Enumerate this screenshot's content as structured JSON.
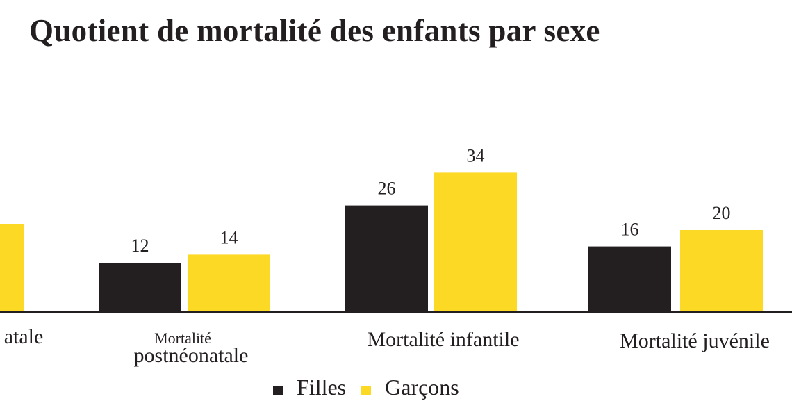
{
  "title": "Quotient de mortalité des enfants par sexe",
  "colors": {
    "filles": "#231f20",
    "garcons": "#fcd924",
    "text": "#231f20",
    "axis": "#231f20"
  },
  "legend": {
    "filles": "Filles",
    "garcons": "Garçons"
  },
  "chart_data": {
    "type": "bar",
    "title": "Quotient de mortalité des enfants par sexe",
    "categories": [
      [
        "Mortalité néonatale"
      ],
      [
        "Mortalité",
        "postnéonatale"
      ],
      [
        "Mortalité infantile"
      ],
      [
        "Mortalité juvénile"
      ]
    ],
    "category_labels_visible": [
      "atale",
      "Mortalité postnéonatale",
      "Mortalité infantile",
      "Mortalité juvénile"
    ],
    "series": [
      {
        "name": "Filles",
        "values": [
          null,
          12,
          26,
          16
        ]
      },
      {
        "name": "Garçons",
        "values": [
          null,
          14,
          34,
          20
        ]
      }
    ],
    "ylim": [
      0,
      40
    ],
    "grid": false,
    "legend_position": "bottom"
  }
}
